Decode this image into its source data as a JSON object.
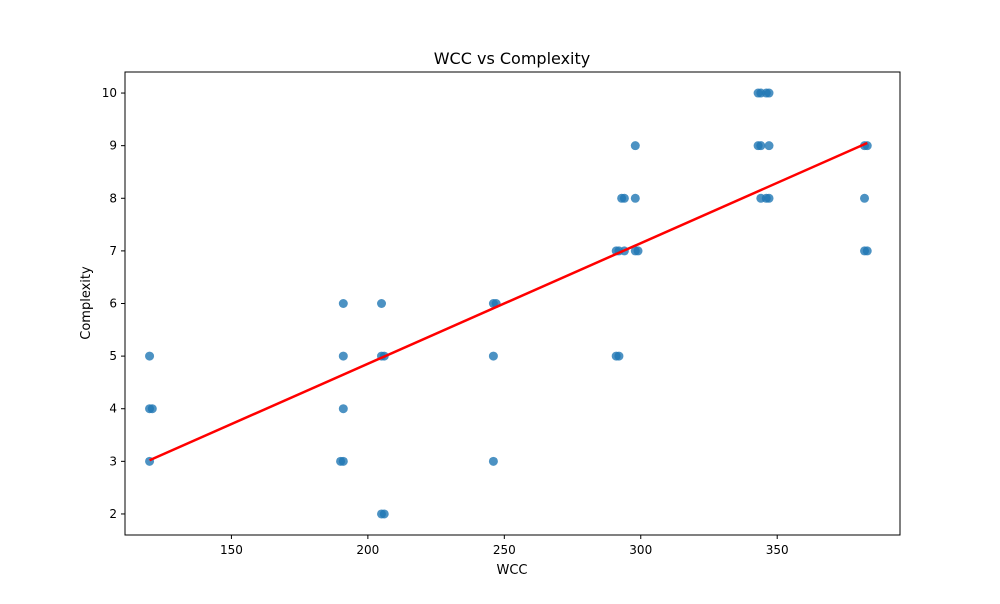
{
  "chart_data": {
    "type": "scatter",
    "title": "WCC vs Complexity",
    "xlabel": "WCC",
    "ylabel": "Complexity",
    "xlim": [
      111,
      395
    ],
    "ylim": [
      1.6,
      10.4
    ],
    "x_ticks": [
      150,
      200,
      250,
      300,
      350
    ],
    "y_ticks": [
      2,
      3,
      4,
      5,
      6,
      7,
      8,
      9,
      10
    ],
    "grid": false,
    "legend": "none",
    "point_color": "#1f77b4",
    "fit_color": "#ff0000",
    "points": [
      {
        "x": 120,
        "y": 5
      },
      {
        "x": 120,
        "y": 4
      },
      {
        "x": 121,
        "y": 4
      },
      {
        "x": 120,
        "y": 3
      },
      {
        "x": 191,
        "y": 6
      },
      {
        "x": 191,
        "y": 5
      },
      {
        "x": 191,
        "y": 4
      },
      {
        "x": 191,
        "y": 3
      },
      {
        "x": 190,
        "y": 3
      },
      {
        "x": 205,
        "y": 6
      },
      {
        "x": 205,
        "y": 5
      },
      {
        "x": 206,
        "y": 5
      },
      {
        "x": 205,
        "y": 2
      },
      {
        "x": 206,
        "y": 2
      },
      {
        "x": 246,
        "y": 6
      },
      {
        "x": 247,
        "y": 6
      },
      {
        "x": 246,
        "y": 5
      },
      {
        "x": 246,
        "y": 3
      },
      {
        "x": 291,
        "y": 7
      },
      {
        "x": 292,
        "y": 7
      },
      {
        "x": 291,
        "y": 5
      },
      {
        "x": 292,
        "y": 5
      },
      {
        "x": 293,
        "y": 8
      },
      {
        "x": 294,
        "y": 8
      },
      {
        "x": 294,
        "y": 7
      },
      {
        "x": 298,
        "y": 9
      },
      {
        "x": 298,
        "y": 8
      },
      {
        "x": 298,
        "y": 7
      },
      {
        "x": 299,
        "y": 7
      },
      {
        "x": 343,
        "y": 10
      },
      {
        "x": 344,
        "y": 10
      },
      {
        "x": 346,
        "y": 10
      },
      {
        "x": 347,
        "y": 10
      },
      {
        "x": 343,
        "y": 9
      },
      {
        "x": 344,
        "y": 9
      },
      {
        "x": 347,
        "y": 9
      },
      {
        "x": 344,
        "y": 8
      },
      {
        "x": 346,
        "y": 8
      },
      {
        "x": 347,
        "y": 8
      },
      {
        "x": 382,
        "y": 9
      },
      {
        "x": 383,
        "y": 9
      },
      {
        "x": 382,
        "y": 8
      },
      {
        "x": 382,
        "y": 7
      },
      {
        "x": 383,
        "y": 7
      }
    ],
    "fit_line": [
      {
        "x": 120,
        "y": 3.02
      },
      {
        "x": 383,
        "y": 9.05
      }
    ]
  }
}
